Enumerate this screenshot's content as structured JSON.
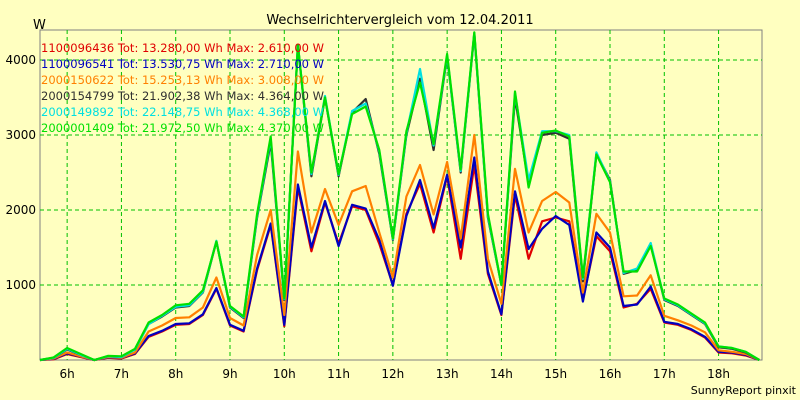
{
  "chart_data": {
    "type": "line",
    "title": "Wechselrichtervergleich vom 12.04.2011",
    "ylabel": "W",
    "xlabel": "",
    "footer": "SunnyReport pinxit",
    "ylim": [
      0,
      4400
    ],
    "xlim": [
      5.5,
      18.8
    ],
    "yticks": [
      {
        "value": 1000,
        "label": "1000"
      },
      {
        "value": 2000,
        "label": "2000"
      },
      {
        "value": 3000,
        "label": "3000"
      },
      {
        "value": 4000,
        "label": "4000"
      }
    ],
    "xticks": [
      {
        "value": 6,
        "label": "6h"
      },
      {
        "value": 7,
        "label": "7h"
      },
      {
        "value": 8,
        "label": "8h"
      },
      {
        "value": 9,
        "label": "9h"
      },
      {
        "value": 10,
        "label": "10h"
      },
      {
        "value": 11,
        "label": "11h"
      },
      {
        "value": 12,
        "label": "12h"
      },
      {
        "value": 13,
        "label": "13h"
      },
      {
        "value": 14,
        "label": "14h"
      },
      {
        "value": 15,
        "label": "15h"
      },
      {
        "value": 16,
        "label": "16h"
      },
      {
        "value": 17,
        "label": "17h"
      },
      {
        "value": 18,
        "label": "18h"
      }
    ],
    "grid": true,
    "legend_position": "top-left",
    "x": [
      5.5,
      5.75,
      6.0,
      6.25,
      6.5,
      6.75,
      7.0,
      7.25,
      7.5,
      7.75,
      8.0,
      8.25,
      8.5,
      8.75,
      9.0,
      9.25,
      9.5,
      9.75,
      10.0,
      10.25,
      10.5,
      10.75,
      11.0,
      11.25,
      11.5,
      11.75,
      12.0,
      12.25,
      12.5,
      12.75,
      13.0,
      13.25,
      13.5,
      13.75,
      14.0,
      14.25,
      14.5,
      14.75,
      15.0,
      15.25,
      15.5,
      15.75,
      16.0,
      16.25,
      16.5,
      16.75,
      17.0,
      17.25,
      17.5,
      17.75,
      18.0,
      18.25,
      18.5,
      18.75
    ],
    "series": [
      {
        "name": "1100096436",
        "legend": "1100096436 Tot: 13.280,00 Wh Max: 2.610,00 W",
        "color": "#e00000",
        "values": [
          0,
          10,
          80,
          40,
          0,
          30,
          20,
          80,
          310,
          380,
          470,
          480,
          600,
          950,
          460,
          380,
          1200,
          1800,
          450,
          2300,
          1450,
          2100,
          1550,
          2050,
          2000,
          1550,
          1000,
          1950,
          2350,
          1700,
          2450,
          1350,
          2600,
          1150,
          600,
          2200,
          1350,
          1850,
          1900,
          1850,
          800,
          1650,
          1450,
          700,
          750,
          950,
          500,
          470,
          400,
          300,
          100,
          90,
          60,
          0
        ]
      },
      {
        "name": "1100096541",
        "legend": "1100096541 Tot: 13.530,75 Wh Max: 2.710,00 W",
        "color": "#0000c0",
        "values": [
          0,
          15,
          90,
          45,
          0,
          35,
          25,
          90,
          320,
          390,
          480,
          490,
          610,
          960,
          470,
          390,
          1220,
          1820,
          470,
          2340,
          1500,
          2120,
          1520,
          2070,
          2020,
          1600,
          990,
          1920,
          2400,
          1760,
          2470,
          1500,
          2700,
          1180,
          610,
          2250,
          1480,
          1750,
          1920,
          1800,
          780,
          1700,
          1500,
          720,
          740,
          980,
          510,
          480,
          410,
          310,
          110,
          100,
          70,
          0
        ]
      },
      {
        "name": "2000150622",
        "legend": "2000150622 Tot: 15.253,13 Wh Max: 3.008,00 W",
        "color": "#ff8000",
        "values": [
          0,
          20,
          100,
          50,
          0,
          40,
          30,
          100,
          380,
          460,
          560,
          570,
          700,
          1100,
          560,
          460,
          1400,
          2000,
          600,
          2780,
          1700,
          2280,
          1800,
          2250,
          2320,
          1700,
          1100,
          2180,
          2600,
          1940,
          2640,
          1620,
          3000,
          1350,
          750,
          2550,
          1700,
          2120,
          2240,
          2100,
          900,
          1950,
          1700,
          850,
          860,
          1130,
          590,
          530,
          460,
          370,
          130,
          110,
          80,
          0
        ]
      },
      {
        "name": "2000154799",
        "legend": "2000154799 Tot: 21.902,38 Wh Max: 4.364,00 W",
        "color": "#303030",
        "values": [
          0,
          30,
          140,
          70,
          0,
          50,
          40,
          140,
          480,
          580,
          700,
          720,
          900,
          1580,
          700,
          560,
          1900,
          2900,
          800,
          4200,
          2450,
          3500,
          2450,
          3300,
          3480,
          2750,
          1600,
          3000,
          3750,
          2800,
          4050,
          2500,
          4350,
          1900,
          1000,
          3500,
          2350,
          3000,
          3030,
          2950,
          1050,
          2750,
          2400,
          1150,
          1200,
          1540,
          800,
          720,
          600,
          480,
          170,
          150,
          100,
          0
        ]
      },
      {
        "name": "2000149892",
        "legend": "2000149892 Tot: 22.148,75 Wh Max: 4.368,00 W",
        "color": "#00e0e0",
        "values": [
          0,
          30,
          150,
          70,
          0,
          50,
          40,
          140,
          480,
          590,
          710,
          730,
          910,
          1590,
          710,
          570,
          1920,
          2950,
          810,
          4200,
          2480,
          3520,
          2470,
          3320,
          3420,
          2780,
          1610,
          3020,
          3880,
          2860,
          4060,
          2520,
          4360,
          1920,
          1000,
          3560,
          2400,
          3050,
          3050,
          3000,
          1080,
          2770,
          2380,
          1160,
          1220,
          1560,
          810,
          730,
          610,
          490,
          180,
          160,
          110,
          0
        ]
      },
      {
        "name": "2000001409",
        "legend": "2000001409 Tot: 21.972,50 Wh Max: 4.370,00 W",
        "color": "#00e000",
        "values": [
          0,
          35,
          160,
          80,
          0,
          55,
          50,
          150,
          500,
          600,
          730,
          750,
          930,
          1580,
          720,
          580,
          1950,
          2980,
          820,
          4200,
          2500,
          3500,
          2480,
          3280,
          3380,
          2800,
          1620,
          3050,
          3700,
          2880,
          4080,
          2540,
          4370,
          1950,
          1000,
          3580,
          2300,
          3030,
          3060,
          2980,
          1100,
          2740,
          2370,
          1180,
          1180,
          1520,
          820,
          740,
          620,
          500,
          180,
          160,
          110,
          0
        ]
      }
    ]
  }
}
